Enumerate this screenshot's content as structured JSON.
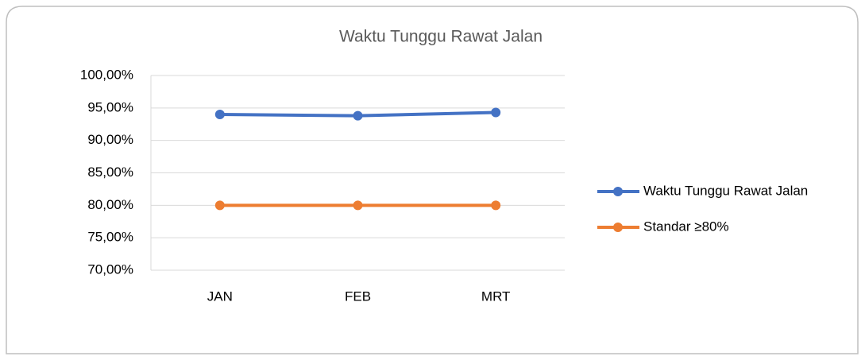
{
  "chart_data": {
    "type": "line",
    "title": "Waktu Tunggu Rawat Jalan",
    "categories": [
      "JAN",
      "FEB",
      "MRT"
    ],
    "series": [
      {
        "name": "Waktu Tunggu Rawat Jalan",
        "color": "#4472c4",
        "values": [
          94.0,
          93.8,
          94.3
        ]
      },
      {
        "name": "Standar ≥80%",
        "color": "#ed7d31",
        "values": [
          80,
          80,
          80
        ]
      }
    ],
    "ylim": [
      70,
      100
    ],
    "yticks": [
      {
        "value": 70,
        "label": "70,00%"
      },
      {
        "value": 75,
        "label": "75,00%"
      },
      {
        "value": 80,
        "label": "80,00%"
      },
      {
        "value": 85,
        "label": "85,00%"
      },
      {
        "value": 90,
        "label": "90,00%"
      },
      {
        "value": 95,
        "label": "95,00%"
      },
      {
        "value": 100,
        "label": "100,00%"
      }
    ],
    "grid": true,
    "legend": "right"
  }
}
